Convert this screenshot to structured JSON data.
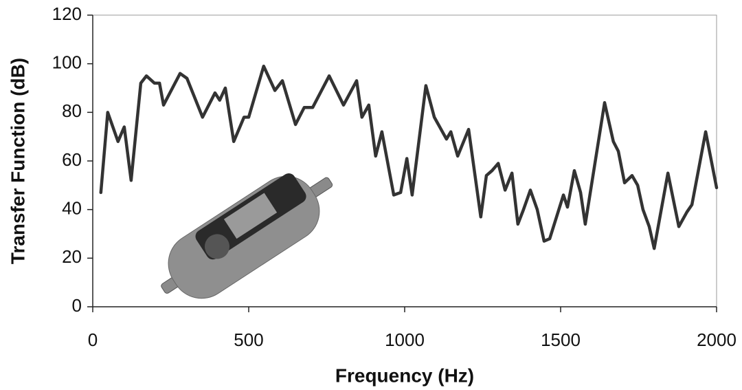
{
  "chart_data": {
    "type": "line",
    "x_label": "Frequency (Hz)",
    "y_label": "Transfer Function (dB)",
    "x": [
      26,
      48,
      81,
      101,
      123,
      154,
      172,
      198,
      214,
      227,
      280,
      302,
      352,
      392,
      407,
      425,
      452,
      485,
      500,
      548,
      584,
      608,
      650,
      678,
      705,
      758,
      804,
      846,
      863,
      885,
      907,
      927,
      965,
      987,
      1007,
      1024,
      1068,
      1095,
      1134,
      1148,
      1170,
      1205,
      1244,
      1262,
      1280,
      1300,
      1322,
      1344,
      1363,
      1381,
      1403,
      1425,
      1447,
      1465,
      1509,
      1522,
      1544,
      1564,
      1579,
      1641,
      1669,
      1685,
      1705,
      1729,
      1747,
      1764,
      1784,
      1800,
      1844,
      1879,
      1905,
      1921,
      1965,
      2000
    ],
    "series": [
      {
        "color": "#333333",
        "values": [
          47,
          80,
          68,
          74,
          52,
          92,
          95,
          92,
          92,
          83,
          96,
          94,
          78,
          88,
          85,
          90,
          68,
          78,
          78,
          99,
          89,
          93,
          75,
          82,
          82,
          95,
          83,
          93,
          78,
          83,
          62,
          72,
          46,
          47,
          61,
          46,
          91,
          78,
          69,
          72,
          62,
          73,
          37,
          54,
          56,
          59,
          48,
          55,
          34,
          40,
          48,
          40,
          27,
          28,
          46,
          41,
          56,
          47,
          34,
          84,
          68,
          64,
          51,
          54,
          50,
          40,
          33,
          24,
          55,
          33,
          39,
          42,
          72,
          49
        ]
      }
    ],
    "xlim": [
      0,
      2000
    ],
    "xticks": [
      0,
      500,
      1000,
      1500,
      2000
    ],
    "ylim": [
      0,
      120
    ],
    "yticks": [
      0,
      20,
      40,
      60,
      80,
      100,
      120
    ],
    "grid": false
  }
}
